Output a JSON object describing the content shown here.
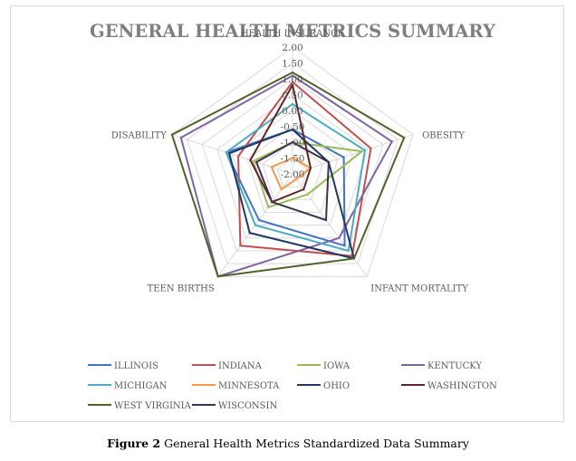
{
  "chart_data": {
    "type": "radar",
    "title": "GENERAL HEALTH METRICS SUMMARY",
    "axes": [
      "HEALTH INSURANCE",
      "OBESITY",
      "INFANT MORTALITY",
      "TEEN BIRTHS",
      "DISABILITY"
    ],
    "tick_labels": [
      "2.00",
      "1.50",
      "1.00",
      "0.50",
      "0.00",
      "-0.50",
      "-1.00",
      "-1.50",
      "-2.00"
    ],
    "range": [
      -2.0,
      2.0
    ],
    "grid": true,
    "legend_position": "bottom",
    "series": [
      {
        "name": "ILLINOIS",
        "color": "#4472c4",
        "values": [
          -0.6,
          -0.3,
          0.8,
          -0.2,
          0.2
        ]
      },
      {
        "name": "INDIANA",
        "color": "#c0504d",
        "values": [
          0.9,
          0.6,
          1.2,
          0.8,
          -0.2
        ]
      },
      {
        "name": "IOWA",
        "color": "#9bbb59",
        "values": [
          -1.0,
          0.3,
          -1.2,
          -0.7,
          -0.7
        ]
      },
      {
        "name": "KENTUCKY",
        "color": "#8064a2",
        "values": [
          1.1,
          1.3,
          0.5,
          2.0,
          1.7
        ]
      },
      {
        "name": "MICHIGAN",
        "color": "#4bacc6",
        "values": [
          0.2,
          0.4,
          1.0,
          0.0,
          0.2
        ]
      },
      {
        "name": "MINNESOTA",
        "color": "#f79646",
        "values": [
          -1.5,
          -1.4,
          -1.8,
          -1.4,
          -1.3
        ]
      },
      {
        "name": "OHIO",
        "color": "#1f3864",
        "values": [
          -0.6,
          -0.8,
          1.3,
          0.3,
          0.1
        ]
      },
      {
        "name": "WASHINGTON",
        "color": "#632523",
        "values": [
          0.8,
          -1.4,
          -1.4,
          -0.9,
          -0.6
        ]
      },
      {
        "name": "WEST VIRGINIA",
        "color": "#4f6228",
        "values": [
          1.2,
          1.7,
          1.3,
          2.0,
          2.0
        ]
      },
      {
        "name": "WISCONSIN",
        "color": "#403152",
        "values": [
          -1.0,
          -0.8,
          -0.2,
          -0.9,
          -0.8
        ]
      }
    ]
  },
  "caption": {
    "figure_number": "Figure 2",
    "text": " General Health Metrics Standardized Data Summary"
  }
}
